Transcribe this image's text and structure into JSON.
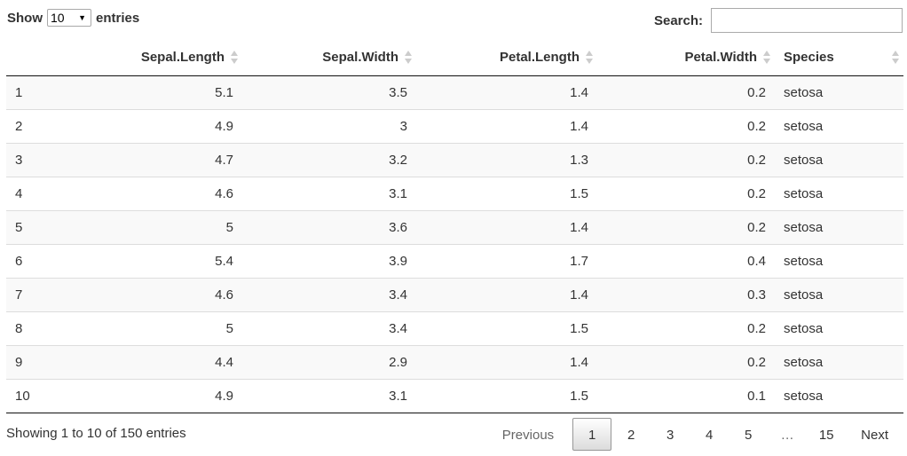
{
  "length": {
    "show_label": "Show",
    "selected": "10",
    "entries_label": "entries"
  },
  "search": {
    "label": "Search:",
    "value": "",
    "placeholder": ""
  },
  "table": {
    "columns": [
      "",
      "Sepal.Length",
      "Sepal.Width",
      "Petal.Length",
      "Petal.Width",
      "Species"
    ],
    "rows": [
      [
        "1",
        "5.1",
        "3.5",
        "1.4",
        "0.2",
        "setosa"
      ],
      [
        "2",
        "4.9",
        "3",
        "1.4",
        "0.2",
        "setosa"
      ],
      [
        "3",
        "4.7",
        "3.2",
        "1.3",
        "0.2",
        "setosa"
      ],
      [
        "4",
        "4.6",
        "3.1",
        "1.5",
        "0.2",
        "setosa"
      ],
      [
        "5",
        "5",
        "3.6",
        "1.4",
        "0.2",
        "setosa"
      ],
      [
        "6",
        "5.4",
        "3.9",
        "1.7",
        "0.4",
        "setosa"
      ],
      [
        "7",
        "4.6",
        "3.4",
        "1.4",
        "0.3",
        "setosa"
      ],
      [
        "8",
        "5",
        "3.4",
        "1.5",
        "0.2",
        "setosa"
      ],
      [
        "9",
        "4.4",
        "2.9",
        "1.4",
        "0.2",
        "setosa"
      ],
      [
        "10",
        "4.9",
        "3.1",
        "1.5",
        "0.1",
        "setosa"
      ]
    ]
  },
  "info": "Showing 1 to 10 of 150 entries",
  "pagination": {
    "previous": "Previous",
    "pages": [
      "1",
      "2",
      "3",
      "4",
      "5",
      "…",
      "15"
    ],
    "current": "1",
    "next": "Next"
  }
}
